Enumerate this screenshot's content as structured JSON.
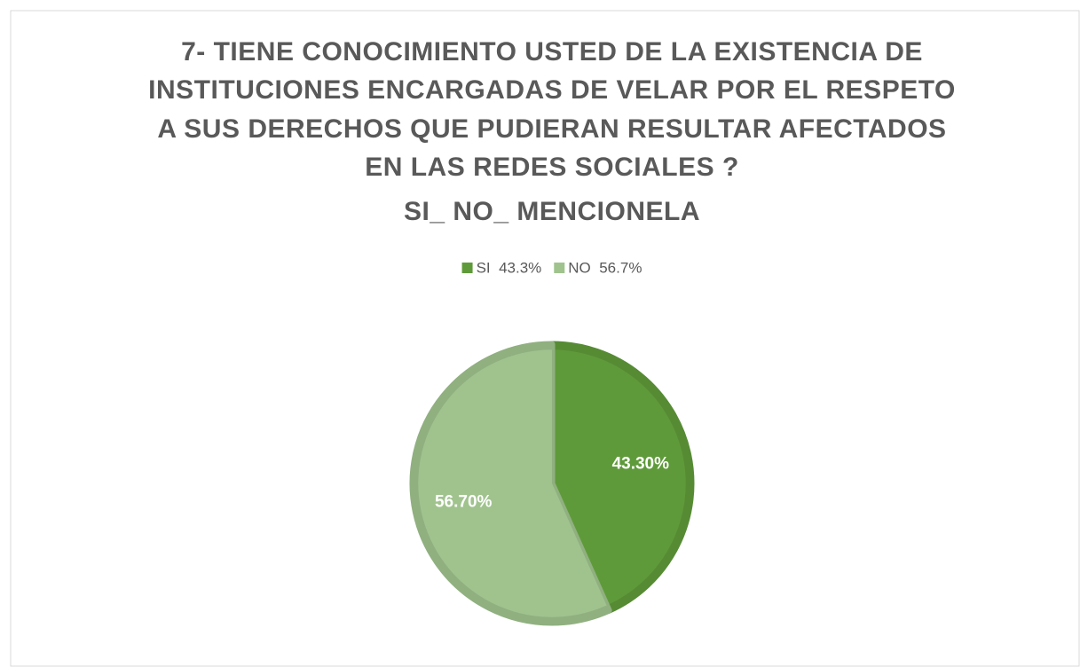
{
  "chart_data": {
    "type": "pie",
    "title": [
      "7- TIENE CONOCIMIENTO USTED DE LA EXISTENCIA DE",
      "INSTITUCIONES ENCARGADAS DE VELAR POR EL RESPETO",
      "A SUS DERECHOS QUE PUDIERAN RESULTAR AFECTADOS",
      "EN LAS REDES SOCIALES ?",
      "SI_ NO_ MENCIONELA"
    ],
    "categories": [
      "SI  43.3%",
      "NO  56.7%"
    ],
    "values": [
      43.3,
      56.7
    ],
    "value_labels": [
      "43.30%",
      "56.70%"
    ],
    "colors": [
      "#5f9a3a",
      "#a0c38e"
    ],
    "legend": "top"
  }
}
